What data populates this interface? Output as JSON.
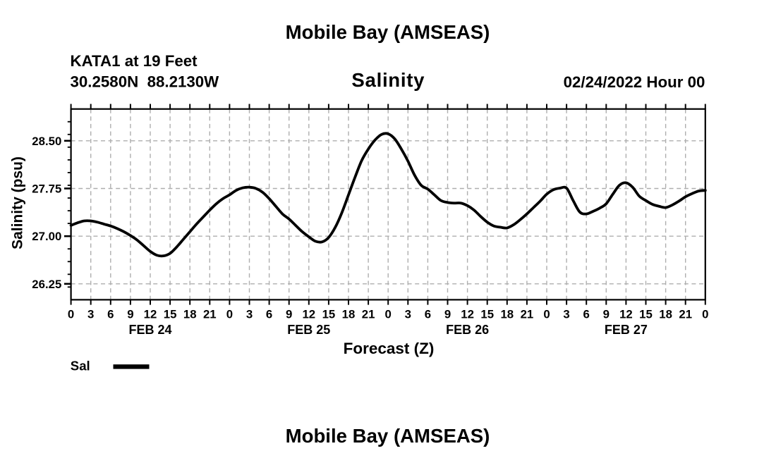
{
  "page": {
    "background": "#ffffff"
  },
  "chart_data": {
    "type": "line",
    "title": "Mobile Bay (AMSEAS)",
    "subtitle": "Salinity",
    "station": "KATA1 at 19 Feet",
    "location": "30.2580N  88.2130W",
    "init_time": "02/24/2022 Hour 00",
    "xlabel": "Forecast (Z)",
    "ylabel": "Salinity (psu)",
    "ylim": [
      26.0,
      29.0
    ],
    "xlim_hours": [
      0,
      96
    ],
    "grid": {
      "color": "#aeaeae",
      "dashed": true,
      "on": true
    },
    "ytick_labels": [
      "26.25",
      "27.00",
      "27.75",
      "28.50"
    ],
    "yticks_labeled": [
      26.25,
      27.0,
      27.75,
      28.5
    ],
    "ytick_minor_step": 0.2,
    "xtick_step_hours": 3,
    "xtick_hour_labels": [
      "0",
      "3",
      "6",
      "9",
      "12",
      "15",
      "18",
      "21"
    ],
    "day_labels": [
      "FEB 24",
      "FEB 25",
      "FEB 26",
      "FEB 27"
    ],
    "day_center_hours": [
      12,
      36,
      60,
      84
    ],
    "legend": {
      "label": "Sal",
      "color": "#000000"
    },
    "next_plot_title": "Mobile Bay (AMSEAS)",
    "series": [
      {
        "name": "Sal",
        "color": "#000000",
        "x_hours": [
          0,
          1,
          2,
          3,
          4,
          5,
          6,
          7,
          8,
          9,
          10,
          11,
          12,
          13,
          14,
          15,
          16,
          17,
          18,
          19,
          20,
          21,
          22,
          23,
          24,
          25,
          26,
          27,
          28,
          29,
          30,
          31,
          32,
          33,
          34,
          35,
          36,
          37,
          38,
          39,
          40,
          41,
          42,
          43,
          44,
          45,
          46,
          47,
          48,
          49,
          50,
          51,
          52,
          53,
          54,
          55,
          56,
          57,
          58,
          59,
          60,
          61,
          62,
          63,
          64,
          65,
          66,
          67,
          68,
          69,
          70,
          71,
          72,
          73,
          74,
          75,
          76,
          77,
          78,
          79,
          80,
          81,
          82,
          83,
          84,
          85,
          86,
          87,
          88,
          89,
          90,
          91,
          92,
          93,
          94,
          95,
          96
        ],
        "values": [
          27.17,
          27.21,
          27.24,
          27.24,
          27.22,
          27.19,
          27.16,
          27.12,
          27.07,
          27.01,
          26.94,
          26.85,
          26.76,
          26.7,
          26.69,
          26.73,
          26.83,
          26.95,
          27.07,
          27.19,
          27.3,
          27.41,
          27.51,
          27.59,
          27.65,
          27.72,
          27.76,
          27.77,
          27.75,
          27.69,
          27.59,
          27.47,
          27.35,
          27.27,
          27.17,
          27.07,
          26.99,
          26.92,
          26.91,
          26.98,
          27.14,
          27.37,
          27.65,
          27.93,
          28.19,
          28.37,
          28.51,
          28.6,
          28.61,
          28.53,
          28.37,
          28.18,
          27.96,
          27.8,
          27.74,
          27.65,
          27.56,
          27.53,
          27.52,
          27.52,
          27.48,
          27.41,
          27.31,
          27.22,
          27.16,
          27.14,
          27.13,
          27.18,
          27.26,
          27.35,
          27.45,
          27.55,
          27.66,
          27.73,
          27.755,
          27.755,
          27.56,
          27.38,
          27.35,
          27.39,
          27.44,
          27.51,
          27.66,
          27.8,
          27.84,
          27.77,
          27.63,
          27.56,
          27.5,
          27.47,
          27.45,
          27.49,
          27.55,
          27.62,
          27.67,
          27.71,
          27.72
        ]
      }
    ]
  }
}
